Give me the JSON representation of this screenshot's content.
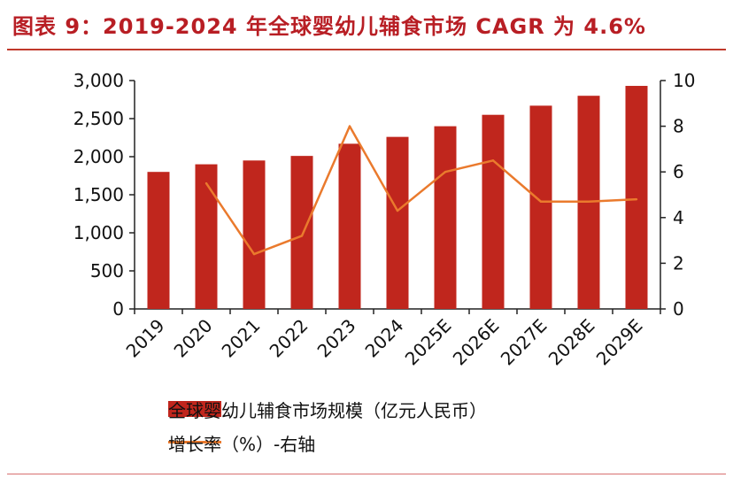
{
  "title": "图表 9：2019-2024 年全球婴幼儿辅食市场 CAGR 为 4.6%",
  "colors": {
    "bar": "#c0261d",
    "line": "#ea7a2d",
    "title": "#b81e24",
    "axis": "#222222"
  },
  "chart_data": {
    "type": "bar",
    "title": "图表 9：2019-2024 年全球婴幼儿辅食市场 CAGR 为 4.6%",
    "categories": [
      "2019",
      "2020",
      "2021",
      "2022",
      "2023",
      "2024",
      "2025E",
      "2026E",
      "2027E",
      "2028E",
      "2029E"
    ],
    "series": [
      {
        "name": "全球婴幼儿辅食市场规模（亿元人民币）",
        "type": "bar",
        "axis": "left",
        "values": [
          1800,
          1900,
          1950,
          2010,
          2170,
          2260,
          2400,
          2550,
          2670,
          2800,
          2930
        ]
      },
      {
        "name": "增长率（%）-右轴",
        "type": "line",
        "axis": "right",
        "values": [
          null,
          5.5,
          2.4,
          3.2,
          8.0,
          4.3,
          6.0,
          6.5,
          4.7,
          4.7,
          4.8
        ]
      }
    ],
    "y_left": {
      "min": 0,
      "max": 3000,
      "ticks": [
        "0",
        "500",
        "1,000",
        "1,500",
        "2,000",
        "2,500",
        "3,000"
      ],
      "tick_values": [
        0,
        500,
        1000,
        1500,
        2000,
        2500,
        3000
      ]
    },
    "y_right": {
      "min": 0,
      "max": 10,
      "ticks": [
        "0",
        "2",
        "4",
        "6",
        "8",
        "10"
      ],
      "tick_values": [
        0,
        2,
        4,
        6,
        8,
        10
      ]
    },
    "legend": [
      {
        "label": "全球婴幼儿辅食市场规模（亿元人民币）",
        "kind": "bar"
      },
      {
        "label": "增长率（%）-右轴",
        "kind": "line"
      }
    ],
    "legend_position": "bottom",
    "grid": false
  }
}
